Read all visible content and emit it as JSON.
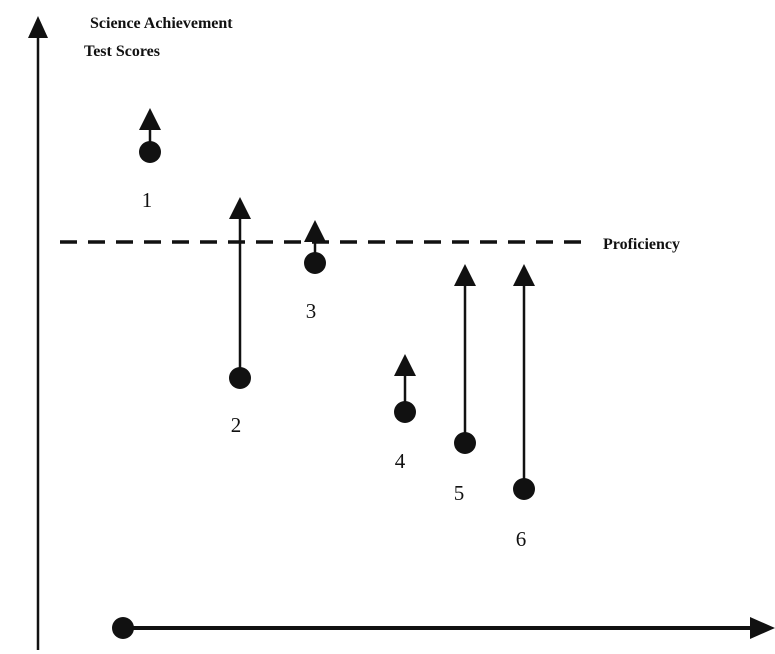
{
  "axis_label": [
    "Science Achievement",
    "Test Scores"
  ],
  "threshold": {
    "label": "Proficiency"
  },
  "students": [
    {
      "label": "1"
    },
    {
      "label": "2"
    },
    {
      "label": "3"
    },
    {
      "label": "4"
    },
    {
      "label": "5"
    },
    {
      "label": "6"
    }
  ]
}
